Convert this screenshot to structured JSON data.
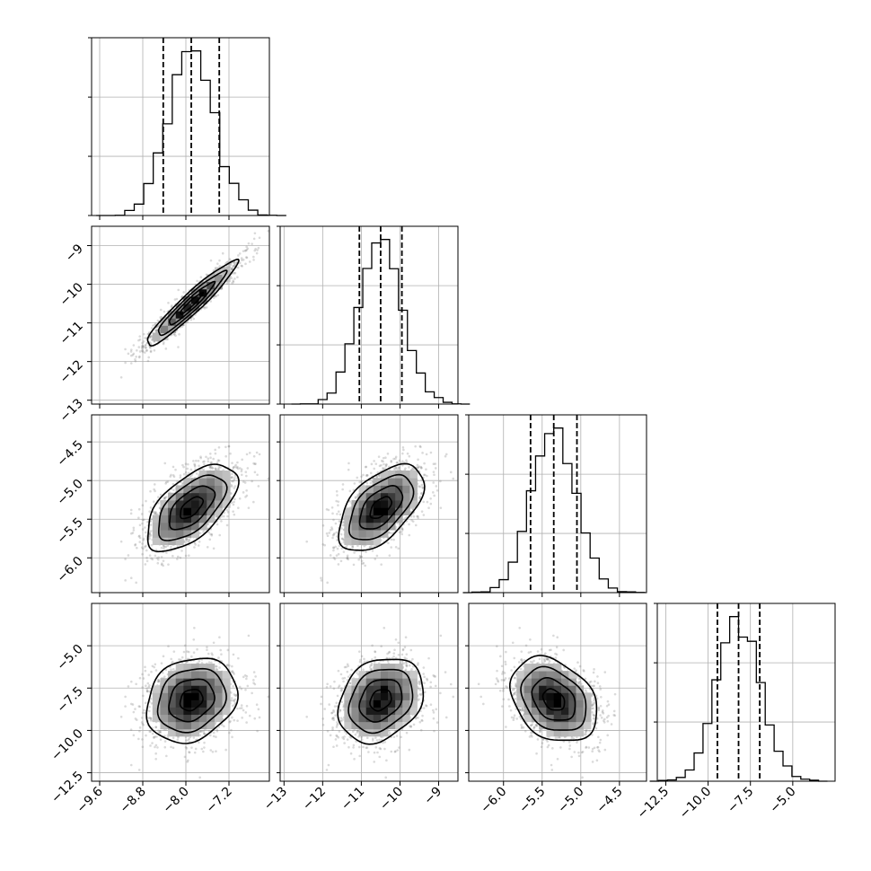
{
  "chart_data": {
    "type": "corner",
    "parameters": [
      {
        "mean": -7.9,
        "sd": 0.42,
        "range": [
          -9.75,
          -6.45
        ],
        "ticks": [
          -9.6,
          -8.8,
          -8.0,
          -7.2
        ],
        "tick_labels": [
          "−9.6",
          "−8.8",
          "−8.0",
          "−7.2"
        ],
        "quantiles": [
          -8.42,
          -7.9,
          -7.38
        ]
      },
      {
        "mean": -10.5,
        "sd": 0.55,
        "range": [
          -13.1,
          -8.5
        ],
        "ticks": [
          -13,
          -12,
          -11,
          -10,
          -9
        ],
        "tick_labels": [
          "−13",
          "−12",
          "−11",
          "−10",
          "−9"
        ],
        "quantiles": [
          -11.05,
          -10.5,
          -9.95
        ]
      },
      {
        "mean": -5.35,
        "sd": 0.28,
        "range": [
          -6.45,
          -4.15
        ],
        "ticks": [
          -6.0,
          -5.5,
          -5.0,
          -4.5
        ],
        "tick_labels": [
          "−6.0",
          "−5.5",
          "−5.0",
          "−4.5"
        ],
        "quantiles": [
          -5.65,
          -5.35,
          -5.05
        ]
      },
      {
        "mean": -8.2,
        "sd": 1.25,
        "range": [
          -13.0,
          -2.5
        ],
        "ticks": [
          -12.5,
          -10.0,
          -7.5,
          -5.0
        ],
        "tick_labels": [
          "−12.5",
          "−10.0",
          "−7.5",
          "−5.0"
        ],
        "quantiles": [
          -9.45,
          -8.2,
          -6.95
        ]
      }
    ],
    "correlations": [
      [
        1.0,
        0.95,
        0.6,
        0.2
      ],
      [
        0.95,
        1.0,
        0.55,
        0.25
      ],
      [
        0.6,
        0.55,
        1.0,
        -0.3
      ],
      [
        0.2,
        0.25,
        -0.3,
        1.0
      ]
    ],
    "contour_levels_sigma": [
      0.5,
      1.0,
      1.5,
      2.0
    ],
    "histogram_bins": 20,
    "grid": true,
    "title": "",
    "legend": "none"
  }
}
